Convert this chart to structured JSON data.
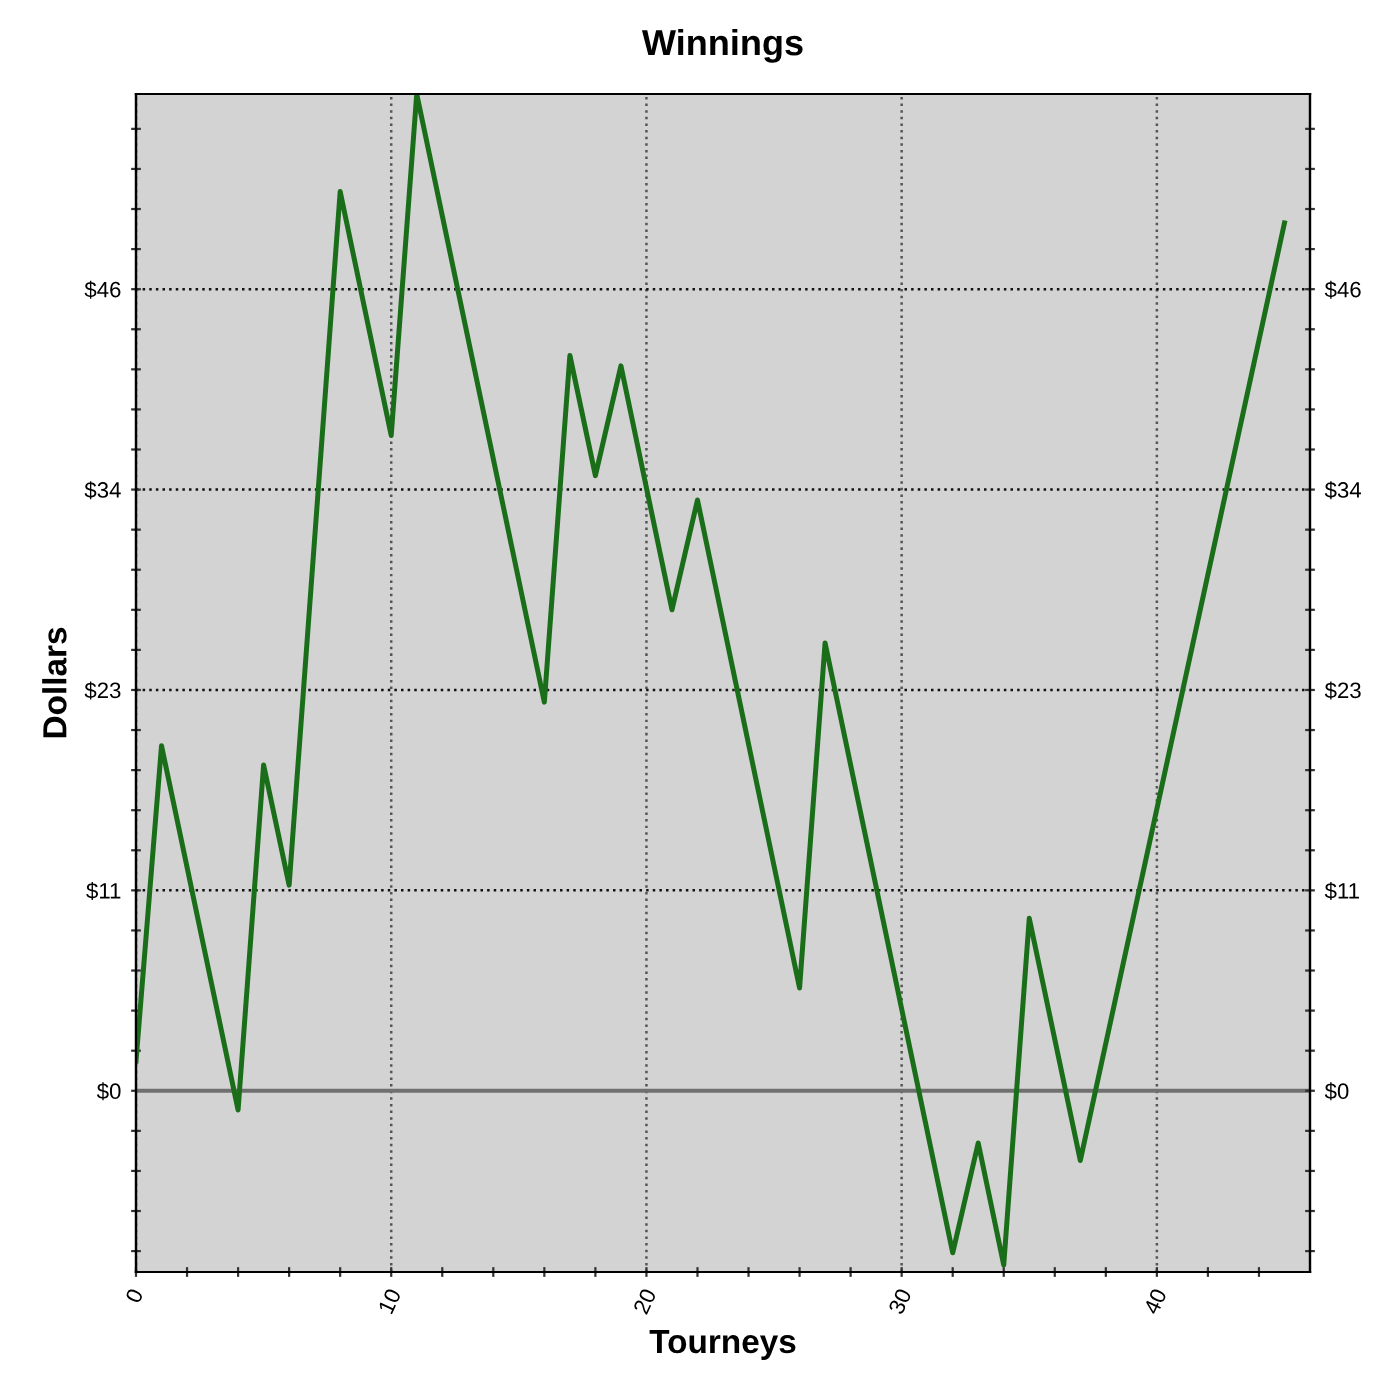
{
  "chart_data": {
    "type": "line",
    "title": "Winnings",
    "xlabel": "Tourneys",
    "ylabel": "Dollars",
    "x": [
      0,
      1,
      4,
      5,
      6,
      8,
      10,
      11,
      16,
      17,
      18,
      19,
      21,
      22,
      26,
      27,
      32,
      33,
      34,
      35,
      37,
      45
    ],
    "series": [
      {
        "color": "#1a6e1a",
        "values": [
          1.7,
          19.8,
          -1.1,
          18.7,
          11.8,
          51.6,
          37.6,
          57.2,
          22.3,
          42.2,
          35.3,
          41.6,
          27.6,
          33.9,
          5.9,
          25.7,
          -9.3,
          -3.0,
          -10.0,
          9.9,
          -4.0,
          49.8
        ]
      }
    ],
    "xlim": [
      0,
      46
    ],
    "xticks": [
      0,
      {
        "value": 2,
        "label": null
      },
      {
        "value": 4,
        "label": null
      },
      {
        "value": 6,
        "label": null
      },
      {
        "value": 8,
        "label": null
      },
      10,
      {
        "value": 12,
        "label": null
      },
      {
        "value": 14,
        "label": null
      },
      {
        "value": 16,
        "label": null
      },
      {
        "value": 18,
        "label": null
      },
      20,
      {
        "value": 22,
        "label": null
      },
      {
        "value": 24,
        "label": null
      },
      {
        "value": 26,
        "label": null
      },
      {
        "value": 28,
        "label": null
      },
      30,
      {
        "value": 32,
        "label": null
      },
      {
        "value": 34,
        "label": null
      },
      {
        "value": 36,
        "label": null
      },
      {
        "value": 38,
        "label": null
      },
      40,
      {
        "value": 42,
        "label": null
      },
      {
        "value": 44,
        "label": null
      }
    ],
    "ylim": [
      -10.4,
      57.2
    ],
    "yticks": [
      {
        "value": -9.2,
        "label": null
      },
      {
        "value": -6.9,
        "label": null
      },
      {
        "value": -4.6,
        "label": null
      },
      {
        "value": -2.3,
        "label": null
      },
      {
        "value": 0,
        "label": "$0"
      },
      {
        "value": 2.3,
        "label": null
      },
      {
        "value": 4.6,
        "label": null
      },
      {
        "value": 6.9,
        "label": null
      },
      {
        "value": 9.2,
        "label": null
      },
      {
        "value": 11.5,
        "label": "$11"
      },
      {
        "value": 13.8,
        "label": null
      },
      {
        "value": 16.1,
        "label": null
      },
      {
        "value": 18.4,
        "label": null
      },
      {
        "value": 20.7,
        "label": null
      },
      {
        "value": 23,
        "label": "$23"
      },
      {
        "value": 25.3,
        "label": null
      },
      {
        "value": 27.6,
        "label": null
      },
      {
        "value": 29.9,
        "label": null
      },
      {
        "value": 32.2,
        "label": null
      },
      {
        "value": 34.5,
        "label": "$34"
      },
      {
        "value": 36.8,
        "label": null
      },
      {
        "value": 39.1,
        "label": null
      },
      {
        "value": 41.4,
        "label": null
      },
      {
        "value": 43.7,
        "label": null
      },
      {
        "value": 46,
        "label": "$46"
      },
      {
        "value": 48.3,
        "label": null
      },
      {
        "value": 50.6,
        "label": null
      },
      {
        "value": 52.9,
        "label": null
      },
      {
        "value": 55.2,
        "label": null
      }
    ],
    "y2lim": [
      -10.4,
      57.2
    ],
    "y2ticks": [
      {
        "value": -9.2,
        "label": null
      },
      {
        "value": -6.9,
        "label": null
      },
      {
        "value": -4.6,
        "label": null
      },
      {
        "value": -2.3,
        "label": null
      },
      {
        "value": 0,
        "label": "$0"
      },
      {
        "value": 2.3,
        "label": null
      },
      {
        "value": 4.6,
        "label": null
      },
      {
        "value": 6.9,
        "label": null
      },
      {
        "value": 9.2,
        "label": null
      },
      {
        "value": 11.5,
        "label": "$11"
      },
      {
        "value": 13.8,
        "label": null
      },
      {
        "value": 16.1,
        "label": null
      },
      {
        "value": 18.4,
        "label": null
      },
      {
        "value": 20.7,
        "label": null
      },
      {
        "value": 23,
        "label": "$23"
      },
      {
        "value": 25.3,
        "label": null
      },
      {
        "value": 27.6,
        "label": null
      },
      {
        "value": 29.9,
        "label": null
      },
      {
        "value": 32.2,
        "label": null
      },
      {
        "value": 34.5,
        "label": "$34"
      },
      {
        "value": 36.8,
        "label": null
      },
      {
        "value": 39.1,
        "label": null
      },
      {
        "value": 41.4,
        "label": null
      },
      {
        "value": 43.7,
        "label": null
      },
      {
        "value": 46,
        "label": "$46"
      },
      {
        "value": 48.3,
        "label": null
      },
      {
        "value": 50.6,
        "label": null
      },
      {
        "value": 52.9,
        "label": null
      },
      {
        "value": 55.2,
        "label": null
      }
    ],
    "ref_lines": [
      {
        "axis": "y",
        "value": 0,
        "color": "#707070"
      }
    ],
    "grid": true,
    "marker": "none",
    "line_style": "solid",
    "legend": false
  }
}
